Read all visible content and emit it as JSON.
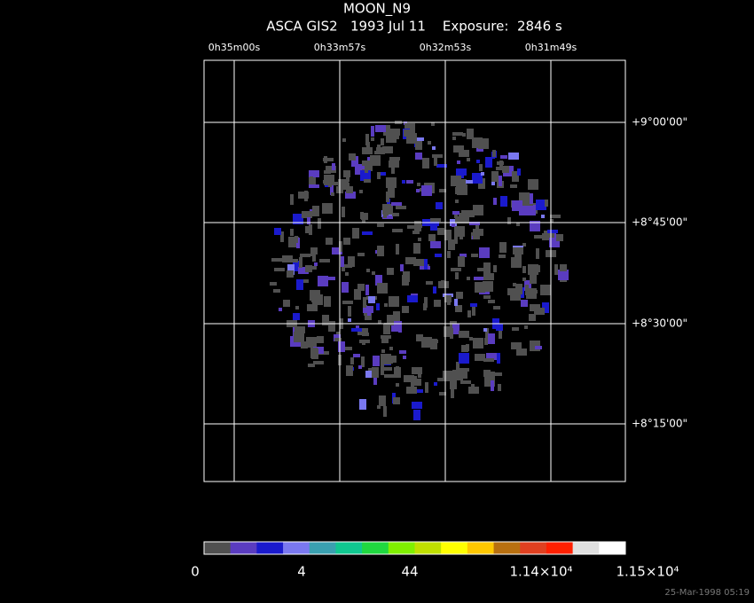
{
  "header": {
    "title": "MOON_N9",
    "subtitle": "ASCA GIS2   1993 Jul 11    Exposure:  2846 s"
  },
  "ra_ticks": [
    "0h35m00s",
    "0h33m57s",
    "0h32m53s",
    "0h31m49s"
  ],
  "dec_ticks": [
    "+9°00'00\"",
    "+8°45'00\"",
    "+8°30'00\"",
    "+8°15'00\""
  ],
  "colorbar": {
    "colors": [
      "#505050",
      "#5a3cc0",
      "#1a1acd",
      "#7a78f0",
      "#3aa0b0",
      "#10c890",
      "#20d840",
      "#80f000",
      "#c0e000",
      "#ffff00",
      "#ffc800",
      "#b87010",
      "#e04020",
      "#ff2000",
      "#e0e0e0",
      "#ffffff"
    ],
    "labels": [
      "0",
      "4",
      "44",
      "1.14×10⁴",
      "1.15×10⁴"
    ]
  },
  "timestamp": "25-Mar-1998 05:19"
}
